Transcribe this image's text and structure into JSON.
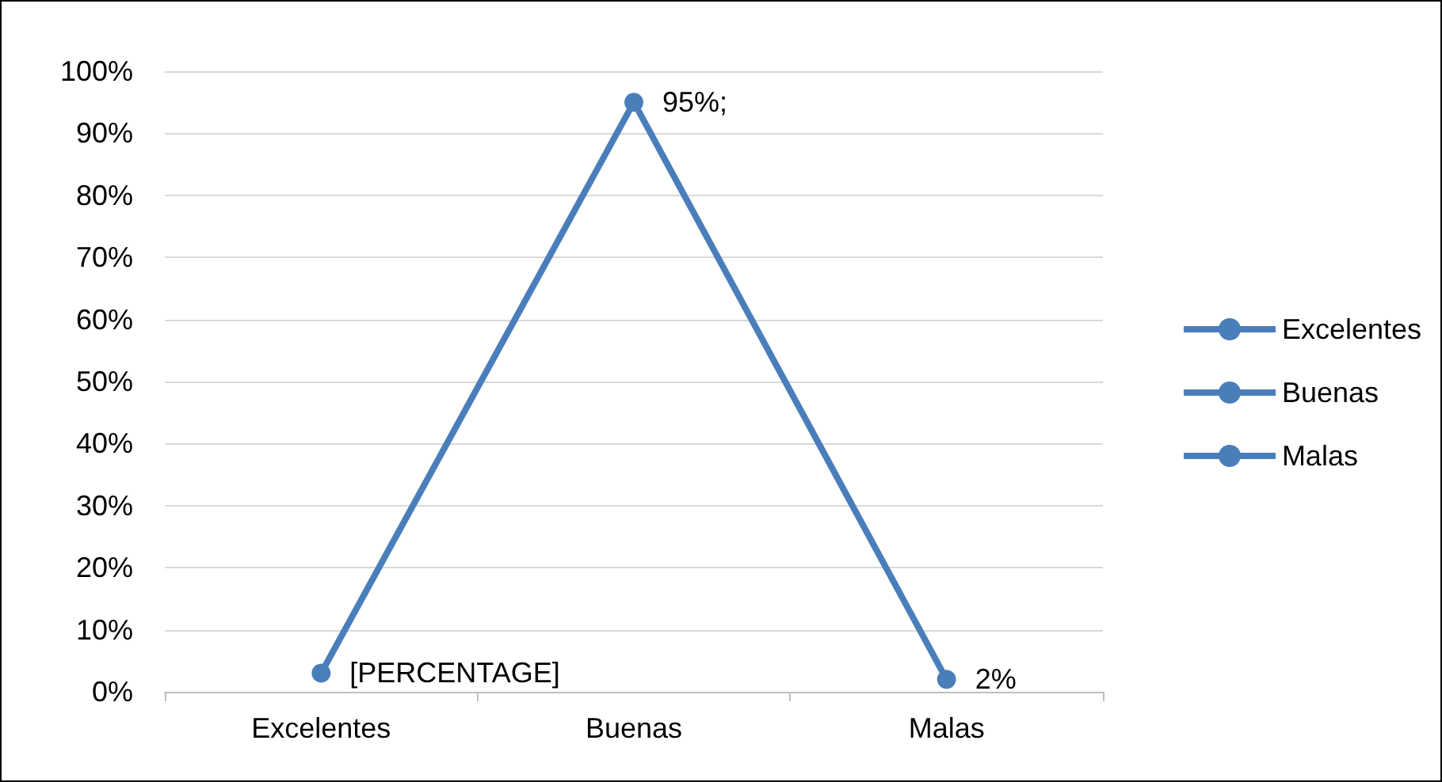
{
  "chart_data": {
    "type": "line",
    "categories": [
      "Excelentes",
      "Buenas",
      "Malas"
    ],
    "series": [
      {
        "color": "#4a7ebb",
        "values": [
          3,
          95,
          2
        ],
        "value_labels": [
          "[PERCENTAGE]",
          "95%;",
          "2%"
        ]
      }
    ],
    "ylim": [
      0,
      100
    ],
    "yticks": [
      {
        "value": 0,
        "label": "0%"
      },
      {
        "value": 10,
        "label": "10%"
      },
      {
        "value": 20,
        "label": "20%"
      },
      {
        "value": 30,
        "label": "30%"
      },
      {
        "value": 40,
        "label": "40%"
      },
      {
        "value": 50,
        "label": "50%"
      },
      {
        "value": 60,
        "label": "60%"
      },
      {
        "value": 70,
        "label": "70%"
      },
      {
        "value": 80,
        "label": "80%"
      },
      {
        "value": 90,
        "label": "90%"
      },
      {
        "value": 100,
        "label": "100%"
      }
    ],
    "grid": "y",
    "marker": "circle",
    "line_style": "solid"
  }
}
